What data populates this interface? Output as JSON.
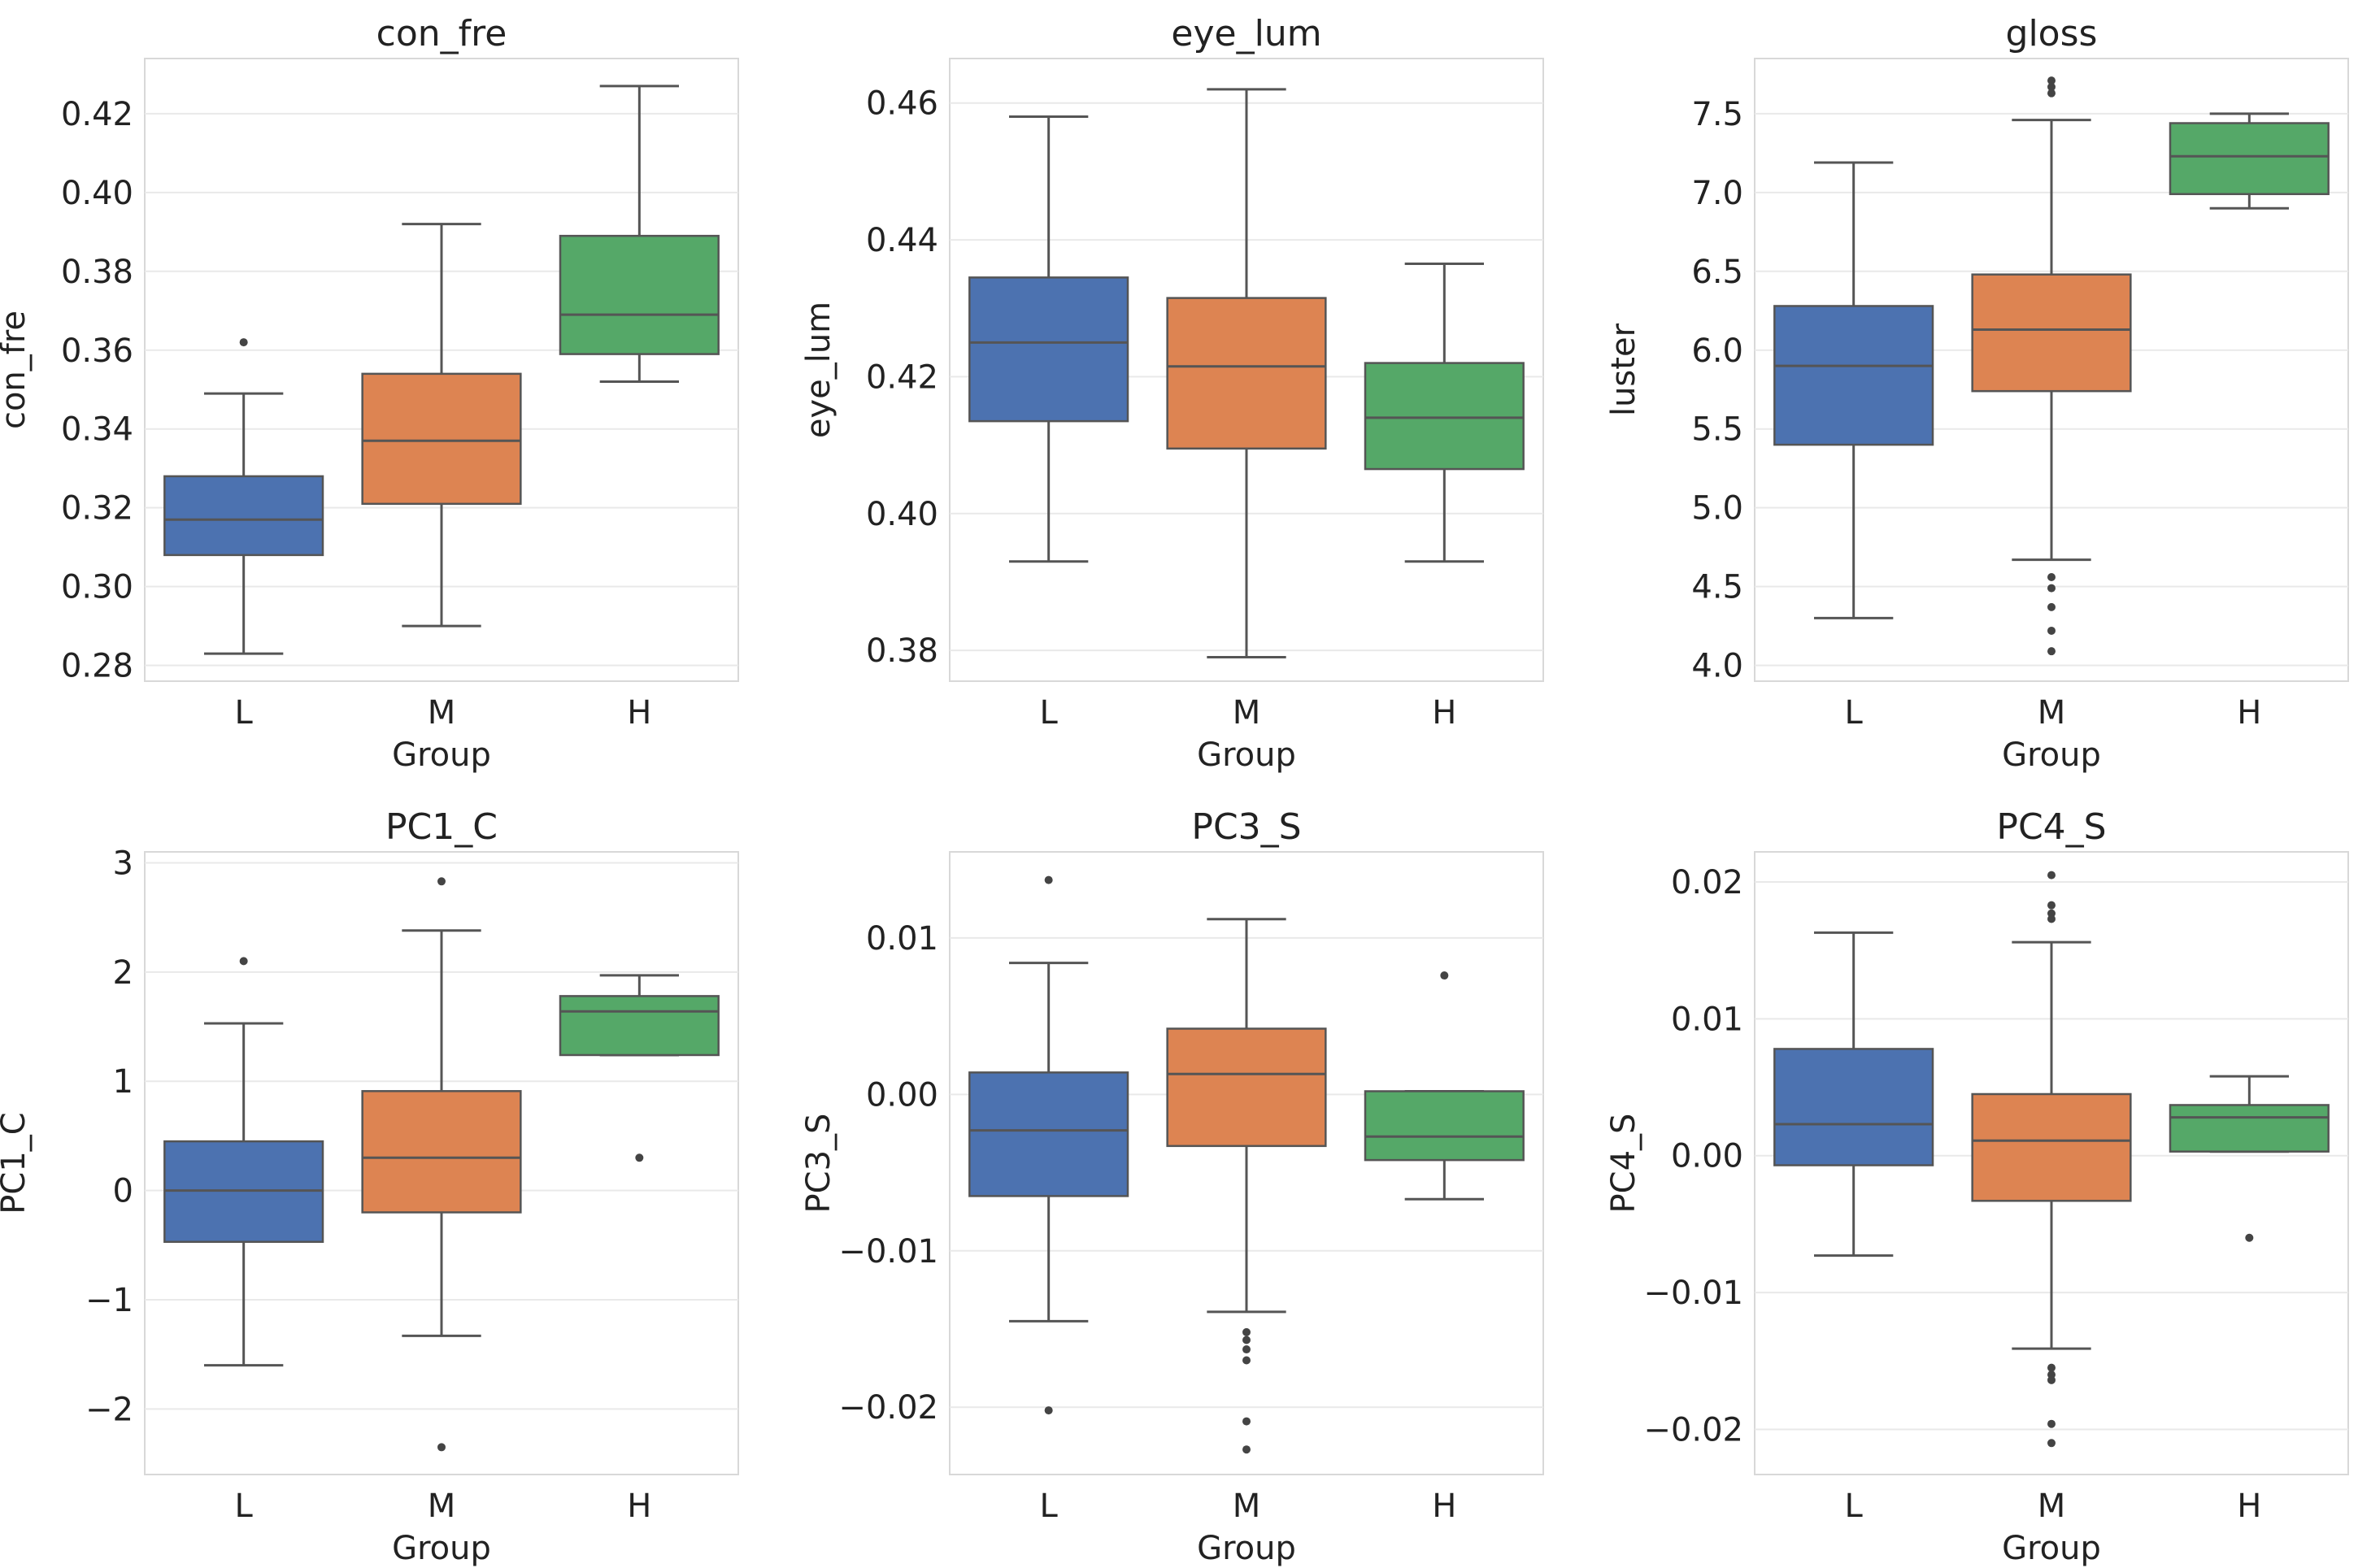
{
  "chart_data": [
    {
      "type": "box",
      "title": "con_fre",
      "xlabel": "Group",
      "ylabel": "con_fre",
      "ylim": [
        0.276,
        0.434
      ],
      "yticks": [
        0.28,
        0.3,
        0.32,
        0.34,
        0.36,
        0.38,
        0.4,
        0.42
      ],
      "ytick_labels": [
        "0.28",
        "0.30",
        "0.32",
        "0.34",
        "0.36",
        "0.38",
        "0.40",
        "0.42"
      ],
      "categories": [
        "L",
        "M",
        "H"
      ],
      "groups": [
        {
          "name": "L",
          "whislo": 0.283,
          "q1": 0.308,
          "med": 0.317,
          "q3": 0.328,
          "whishi": 0.349,
          "fliers": [
            0.362
          ]
        },
        {
          "name": "M",
          "whislo": 0.29,
          "q1": 0.321,
          "med": 0.337,
          "q3": 0.354,
          "whishi": 0.392,
          "fliers": []
        },
        {
          "name": "H",
          "whislo": 0.352,
          "q1": 0.359,
          "med": 0.369,
          "q3": 0.389,
          "whishi": 0.427,
          "fliers": []
        }
      ]
    },
    {
      "type": "box",
      "title": "eye_lum",
      "xlabel": "Group",
      "ylabel": "eye_lum",
      "ylim": [
        0.3755,
        0.4665
      ],
      "yticks": [
        0.38,
        0.4,
        0.42,
        0.44,
        0.46
      ],
      "ytick_labels": [
        "0.38",
        "0.40",
        "0.42",
        "0.44",
        "0.46"
      ],
      "categories": [
        "L",
        "M",
        "H"
      ],
      "groups": [
        {
          "name": "L",
          "whislo": 0.393,
          "q1": 0.4135,
          "med": 0.425,
          "q3": 0.4345,
          "whishi": 0.458,
          "fliers": []
        },
        {
          "name": "M",
          "whislo": 0.379,
          "q1": 0.4095,
          "med": 0.4215,
          "q3": 0.4315,
          "whishi": 0.462,
          "fliers": []
        },
        {
          "name": "H",
          "whislo": 0.393,
          "q1": 0.4065,
          "med": 0.414,
          "q3": 0.422,
          "whishi": 0.4365,
          "fliers": []
        }
      ]
    },
    {
      "type": "box",
      "title": "gloss",
      "xlabel": "Group",
      "ylabel": "luster",
      "ylim": [
        3.9,
        7.85
      ],
      "yticks": [
        4.0,
        4.5,
        5.0,
        5.5,
        6.0,
        6.5,
        7.0,
        7.5
      ],
      "ytick_labels": [
        "4.0",
        "4.5",
        "5.0",
        "5.5",
        "6.0",
        "6.5",
        "7.0",
        "7.5"
      ],
      "categories": [
        "L",
        "M",
        "H"
      ],
      "groups": [
        {
          "name": "L",
          "whislo": 4.3,
          "q1": 5.4,
          "med": 5.9,
          "q3": 6.28,
          "whishi": 7.19,
          "fliers": []
        },
        {
          "name": "M",
          "whislo": 4.67,
          "q1": 5.74,
          "med": 6.13,
          "q3": 6.48,
          "whishi": 7.46,
          "fliers": [
            7.63,
            7.67,
            7.71,
            4.56,
            4.49,
            4.37,
            4.22,
            4.09
          ]
        },
        {
          "name": "H",
          "whislo": 6.9,
          "q1": 6.99,
          "med": 7.23,
          "q3": 7.44,
          "whishi": 7.5,
          "fliers": []
        }
      ]
    },
    {
      "type": "box",
      "title": "PC1_C",
      "xlabel": "Group",
      "ylabel": "PC1_C",
      "ylim": [
        -2.6,
        3.1
      ],
      "yticks": [
        -2,
        -1,
        0,
        1,
        2,
        3
      ],
      "ytick_labels": [
        "−2",
        "−1",
        "0",
        "1",
        "2",
        "3"
      ],
      "categories": [
        "L",
        "M",
        "H"
      ],
      "groups": [
        {
          "name": "L",
          "whislo": -1.6,
          "q1": -0.47,
          "med": 0.0,
          "q3": 0.45,
          "whishi": 1.53,
          "fliers": [
            2.1
          ]
        },
        {
          "name": "M",
          "whislo": -1.33,
          "q1": -0.2,
          "med": 0.3,
          "q3": 0.91,
          "whishi": 2.38,
          "fliers": [
            2.83,
            -2.35
          ]
        },
        {
          "name": "H",
          "whislo": 1.24,
          "q1": 1.24,
          "med": 1.64,
          "q3": 1.78,
          "whishi": 1.97,
          "fliers": [
            0.3
          ]
        }
      ]
    },
    {
      "type": "box",
      "title": "PC3_S",
      "xlabel": "Group",
      "ylabel": "PC3_S",
      "ylim": [
        -0.0243,
        0.0155
      ],
      "yticks": [
        -0.02,
        -0.01,
        0.0,
        0.01
      ],
      "ytick_labels": [
        "−0.02",
        "−0.01",
        "0.00",
        "0.01"
      ],
      "categories": [
        "L",
        "M",
        "H"
      ],
      "groups": [
        {
          "name": "L",
          "whislo": -0.0145,
          "q1": -0.0065,
          "med": -0.0023,
          "q3": 0.0014,
          "whishi": 0.0084,
          "fliers": [
            0.0137,
            -0.0202
          ]
        },
        {
          "name": "M",
          "whislo": -0.0139,
          "q1": -0.0033,
          "med": 0.0013,
          "q3": 0.0042,
          "whishi": 0.0112,
          "fliers": [
            -0.0152,
            -0.0157,
            -0.0163,
            -0.017,
            -0.0209,
            -0.0227
          ]
        },
        {
          "name": "H",
          "whislo": -0.0067,
          "q1": -0.0042,
          "med": -0.0027,
          "q3": 0.0002,
          "whishi": 0.0002,
          "fliers": [
            0.0076
          ]
        }
      ]
    },
    {
      "type": "box",
      "title": "PC4_S",
      "xlabel": "Group",
      "ylabel": "PC4_S",
      "ylim": [
        -0.0233,
        0.0222
      ],
      "yticks": [
        -0.02,
        -0.01,
        0.0,
        0.01,
        0.02
      ],
      "ytick_labels": [
        "−0.02",
        "−0.01",
        "0.00",
        "0.01",
        "0.02"
      ],
      "categories": [
        "L",
        "M",
        "H"
      ],
      "groups": [
        {
          "name": "L",
          "whislo": -0.0073,
          "q1": -0.0007,
          "med": 0.0023,
          "q3": 0.0078,
          "whishi": 0.0163,
          "fliers": []
        },
        {
          "name": "M",
          "whislo": -0.0141,
          "q1": -0.0033,
          "med": 0.0011,
          "q3": 0.0045,
          "whishi": 0.0156,
          "fliers": [
            0.0205,
            0.0183,
            0.0177,
            0.0173,
            -0.0155,
            -0.016,
            -0.0164,
            -0.0196,
            -0.021
          ]
        },
        {
          "name": "H",
          "whislo": 0.0003,
          "q1": 0.0003,
          "med": 0.0028,
          "q3": 0.0037,
          "whishi": 0.0058,
          "fliers": [
            -0.006
          ]
        }
      ]
    }
  ],
  "colors": {
    "L": "#4c72b0",
    "M": "#dd8452",
    "H": "#55a868",
    "line": "#555555",
    "grid": "#e9e9e9"
  }
}
